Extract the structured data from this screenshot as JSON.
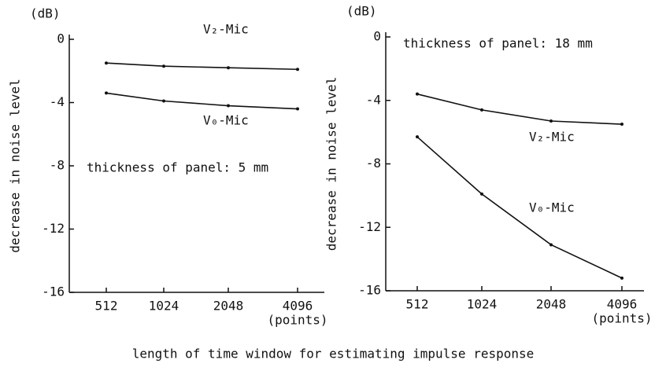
{
  "chart_data": [
    {
      "type": "line",
      "y_unit": "(dB)",
      "ylabel": "decrease in noise level",
      "x_unit": "(points)",
      "annotation": "thickness of panel: 5 mm",
      "categories": [
        "512",
        "1024",
        "2048",
        "4096"
      ],
      "ylim": [
        -16,
        0
      ],
      "yticks": [
        0,
        -4,
        -8,
        -12,
        -16
      ],
      "series": [
        {
          "name": "V₂-Mic",
          "color": "#111111",
          "values": [
            -1.5,
            -1.7,
            -1.8,
            -1.9
          ]
        },
        {
          "name": "V₀-Mic",
          "color": "#111111",
          "values": [
            -3.4,
            -3.9,
            -4.2,
            -4.4
          ]
        }
      ]
    },
    {
      "type": "line",
      "y_unit": "(dB)",
      "ylabel": "decrease in noise level",
      "x_unit": "(points)",
      "annotation": "thickness of panel: 18 mm",
      "categories": [
        "512",
        "1024",
        "2048",
        "4096"
      ],
      "ylim": [
        -16,
        0
      ],
      "yticks": [
        0,
        -4,
        -8,
        -12,
        -16
      ],
      "series": [
        {
          "name": "V₂-Mic",
          "color": "#111111",
          "values": [
            -3.6,
            -4.6,
            -5.3,
            -5.5
          ]
        },
        {
          "name": "V₀-Mic",
          "color": "#111111",
          "values": [
            -6.3,
            -9.9,
            -13.1,
            -15.2
          ]
        }
      ]
    }
  ],
  "caption": "length of time window for estimating impulse response"
}
